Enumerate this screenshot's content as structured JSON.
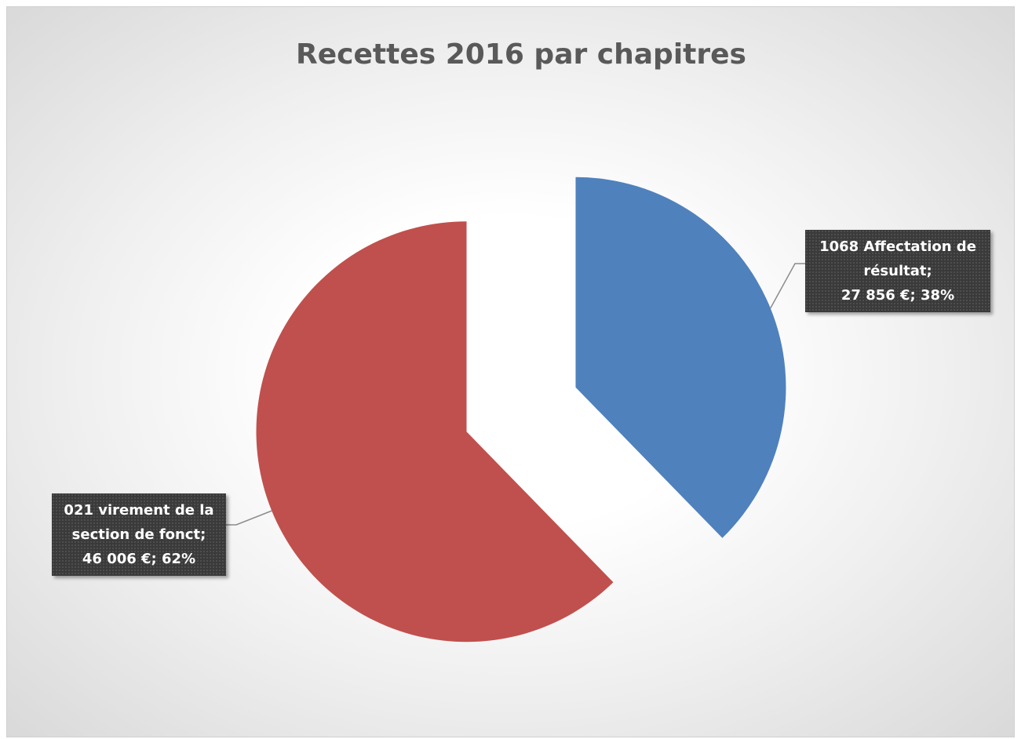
{
  "chart_data": {
    "type": "pie",
    "title": "Recettes 2016 par chapitres",
    "categories": [
      "1068 Affectation de résultat;",
      "021 virement de la section de fonct;"
    ],
    "values": [
      27856,
      46006
    ],
    "value_labels": [
      "27 856 €; 38%",
      "46 006 €; 62%"
    ],
    "colors": [
      "#4f81bd",
      "#c0504d"
    ],
    "exploded": true
  }
}
